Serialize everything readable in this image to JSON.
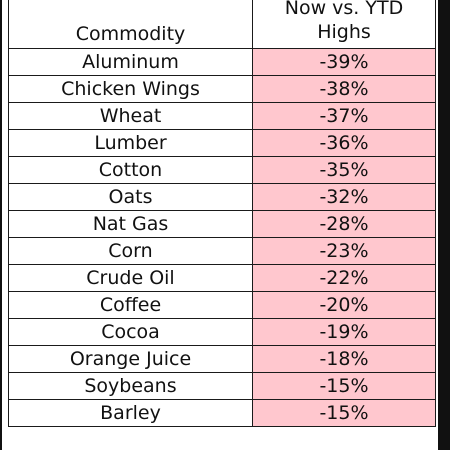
{
  "chart_data": {
    "type": "table",
    "columns": [
      "Commodity",
      "Now vs. YTD Highs"
    ],
    "rows": [
      {
        "commodity": "Aluminum",
        "change": "-39%"
      },
      {
        "commodity": "Chicken Wings",
        "change": "-38%"
      },
      {
        "commodity": "Wheat",
        "change": "-37%"
      },
      {
        "commodity": "Lumber",
        "change": "-36%"
      },
      {
        "commodity": "Cotton",
        "change": "-35%"
      },
      {
        "commodity": "Oats",
        "change": "-32%"
      },
      {
        "commodity": "Nat Gas",
        "change": "-28%"
      },
      {
        "commodity": "Corn",
        "change": "-23%"
      },
      {
        "commodity": "Crude Oil",
        "change": "-22%"
      },
      {
        "commodity": "Coffee",
        "change": "-20%"
      },
      {
        "commodity": "Cocoa",
        "change": "-19%"
      },
      {
        "commodity": "Orange Juice",
        "change": "-18%"
      },
      {
        "commodity": "Soybeans",
        "change": "-15%"
      },
      {
        "commodity": "Barley",
        "change": "-15%"
      }
    ],
    "header": {
      "commodity": "Commodity",
      "change_line1": "Now vs. YTD",
      "change_line2": "Highs"
    },
    "colors": {
      "value_fill": "#ffc7ce",
      "border": "#1a1a1a"
    }
  }
}
